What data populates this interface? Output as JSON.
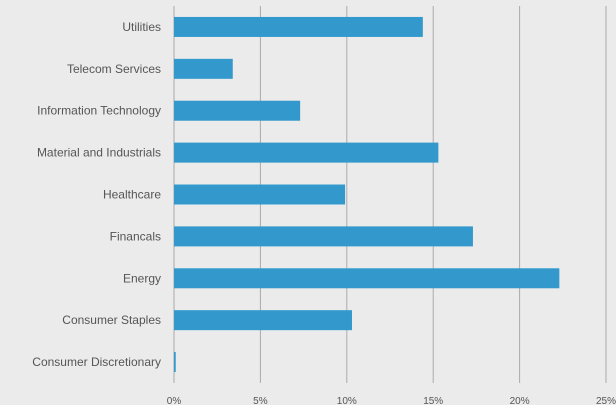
{
  "chart_data": {
    "type": "bar",
    "orientation": "horizontal",
    "categories": [
      "Utilities",
      "Telecom Services",
      "Information Technology",
      "Material and Industrials",
      "Healthcare",
      "Financals",
      "Energy",
      "Consumer Staples",
      "Consumer Discretionary"
    ],
    "values": [
      14.4,
      3.4,
      7.3,
      15.3,
      9.9,
      17.3,
      22.3,
      10.3,
      0.1
    ],
    "xlim": [
      0,
      25
    ],
    "xticks": [
      0,
      5,
      10,
      15,
      20,
      25
    ],
    "xtick_labels": [
      "0%",
      "5%",
      "10%",
      "15%",
      "20%",
      "25%"
    ],
    "title": "",
    "xlabel": "",
    "ylabel": "",
    "grid": "vertical",
    "legend": "none",
    "colors": {
      "bar": "#3399cc",
      "grid": "#aaaaaa",
      "background": "#ebebeb",
      "text": "#555555"
    }
  }
}
